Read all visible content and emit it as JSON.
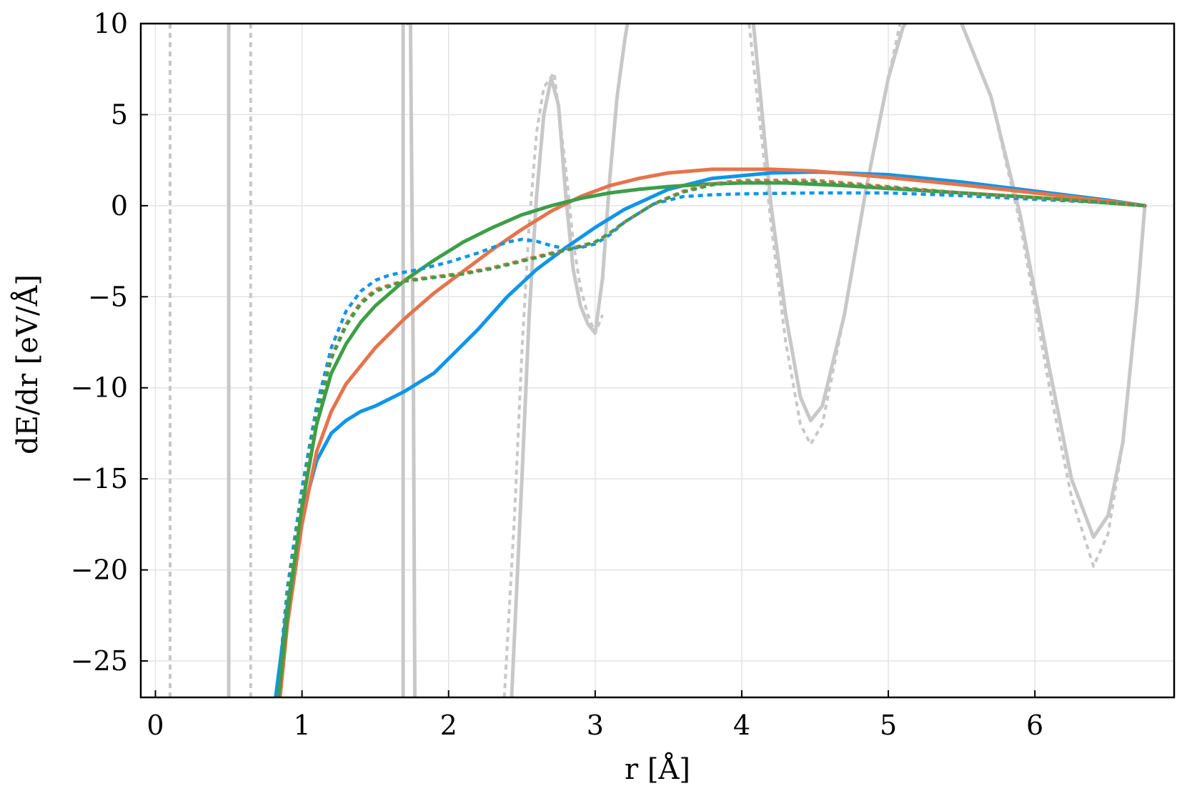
{
  "chart_data": {
    "type": "line",
    "xlabel": "r [Å]",
    "ylabel": "dE/dr [eV/Å]",
    "xlim": [
      -0.1,
      6.95
    ],
    "ylim": [
      -27,
      10
    ],
    "x_ticks": [
      0,
      1,
      2,
      3,
      4,
      5,
      6
    ],
    "y_ticks": [
      10,
      5,
      0,
      -5,
      -10,
      -15,
      -20,
      -25
    ],
    "x_tick_labels": [
      "0",
      "1",
      "2",
      "3",
      "4",
      "5",
      "6"
    ],
    "y_tick_labels": [
      "10",
      "5",
      "0",
      "−5",
      "−10",
      "−15",
      "−20",
      "−25"
    ],
    "grid": true,
    "legend": "none",
    "series": [
      {
        "color": "#c8c8c8",
        "dash": "solid",
        "width": 5,
        "x": [
          0.5,
          0.5
        ],
        "y": [
          -27,
          10
        ]
      },
      {
        "color": "#c8c8c8",
        "dash": "dotted",
        "width": 4,
        "x": [
          0.1,
          0.1
        ],
        "y": [
          -27,
          10
        ]
      },
      {
        "color": "#c8c8c8",
        "dash": "dotted",
        "width": 4,
        "x": [
          0.65,
          0.65
        ],
        "y": [
          -27,
          10
        ]
      },
      {
        "color": "#c8c8c8",
        "dash": "solid",
        "width": 5,
        "x": [
          1.69,
          1.69
        ],
        "y": [
          -27,
          10
        ]
      },
      {
        "color": "#c8c8c8",
        "dash": "solid",
        "width": 5,
        "x": [
          1.72,
          1.73,
          1.74,
          1.76,
          1.77
        ],
        "y": [
          10,
          11,
          10,
          -10,
          -27
        ]
      },
      {
        "color": "#c8c8c8",
        "dash": "solid",
        "width": 5,
        "x": [
          2.43,
          2.5,
          2.55,
          2.6,
          2.65,
          2.7,
          2.75,
          2.8,
          2.85,
          2.9,
          2.95,
          3.0,
          3.05,
          3.1,
          3.15,
          3.2,
          3.22
        ],
        "y": [
          -27,
          -15,
          -6,
          0.5,
          5,
          7,
          5.5,
          0.5,
          -3.5,
          -5.5,
          -6.5,
          -7,
          -4,
          1.5,
          6,
          9,
          10
        ]
      },
      {
        "color": "#c8c8c8",
        "dash": "dotted",
        "width": 4,
        "x": [
          2.38,
          2.45,
          2.5,
          2.55,
          2.6,
          2.65,
          2.72,
          2.8,
          2.85,
          2.9,
          2.95,
          3.0,
          3.05
        ],
        "y": [
          -27,
          -17,
          -8,
          -1,
          4,
          6.5,
          7.3,
          2,
          -2,
          -4.5,
          -6,
          -7,
          -6
        ]
      },
      {
        "color": "#c8c8c8",
        "dash": "solid",
        "width": 5,
        "x": [
          4.08,
          4.2,
          4.3,
          4.4,
          4.47,
          4.55,
          4.7,
          4.85,
          5.0,
          5.1,
          5.2,
          5.3,
          5.5,
          5.7,
          5.9,
          6.1,
          6.25,
          6.4,
          6.5,
          6.6,
          6.7,
          6.75
        ],
        "y": [
          10,
          0,
          -6,
          -10.5,
          -11.8,
          -11,
          -6,
          1,
          7,
          9.8,
          11,
          11,
          10,
          6,
          -0.5,
          -9,
          -15,
          -18.2,
          -17,
          -13,
          -5,
          0
        ]
      },
      {
        "color": "#c8c8c8",
        "dash": "dotted",
        "width": 4,
        "x": [
          4.05,
          4.2,
          4.3,
          4.4,
          4.47,
          4.55,
          4.7,
          4.85,
          5.0,
          5.08,
          5.2,
          5.5,
          5.7,
          5.9,
          6.1,
          6.25,
          6.4,
          6.5,
          6.6,
          6.7,
          6.75
        ],
        "y": [
          10,
          -1,
          -7.5,
          -12,
          -13.1,
          -12,
          -6,
          1,
          7,
          10,
          11,
          10,
          6,
          -1,
          -10,
          -16,
          -19.8,
          -18,
          -13,
          -5,
          0
        ]
      },
      {
        "color": "#0f95ea",
        "dash": "solid",
        "width": 5,
        "x": [
          0.82,
          0.9,
          1.0,
          1.1,
          1.2,
          1.3,
          1.4,
          1.5,
          1.7,
          1.9,
          2.0,
          2.2,
          2.4,
          2.6,
          2.8,
          3.0,
          3.2,
          3.5,
          3.8,
          4.2,
          4.5,
          5.0,
          5.5,
          6.0,
          6.5,
          6.75
        ],
        "y": [
          -27,
          -22,
          -17,
          -14,
          -12.5,
          -11.8,
          -11.3,
          -11,
          -10.2,
          -9.2,
          -8.4,
          -6.8,
          -5,
          -3.5,
          -2.3,
          -1.2,
          -0.2,
          0.9,
          1.5,
          1.8,
          1.85,
          1.7,
          1.3,
          0.8,
          0.3,
          0
        ]
      },
      {
        "color": "#e5744b",
        "dash": "solid",
        "width": 5,
        "x": [
          0.85,
          0.9,
          1.0,
          1.1,
          1.2,
          1.3,
          1.5,
          1.7,
          1.9,
          2.1,
          2.3,
          2.5,
          2.7,
          2.9,
          3.1,
          3.3,
          3.5,
          3.8,
          4.0,
          4.2,
          4.5,
          5.0,
          5.5,
          6.0,
          6.5,
          6.75
        ],
        "y": [
          -27,
          -23,
          -17.5,
          -13.5,
          -11.3,
          -9.8,
          -7.8,
          -6.2,
          -4.8,
          -3.6,
          -2.4,
          -1.3,
          -0.3,
          0.5,
          1.1,
          1.5,
          1.8,
          2.0,
          2.0,
          2.0,
          1.9,
          1.55,
          1.15,
          0.7,
          0.25,
          0
        ]
      },
      {
        "color": "#3e9e48",
        "dash": "solid",
        "width": 5,
        "x": [
          0.84,
          0.9,
          1.0,
          1.1,
          1.2,
          1.3,
          1.4,
          1.5,
          1.7,
          1.9,
          2.1,
          2.3,
          2.5,
          2.7,
          2.9,
          3.1,
          3.3,
          3.5,
          3.8,
          4.0,
          4.3,
          4.7,
          5.0,
          5.5,
          6.0,
          6.5,
          6.75
        ],
        "y": [
          -27,
          -22.5,
          -16.5,
          -12,
          -9.2,
          -7.6,
          -6.4,
          -5.5,
          -4.1,
          -3.0,
          -2.0,
          -1.2,
          -0.5,
          0.0,
          0.4,
          0.7,
          0.9,
          1.05,
          1.2,
          1.25,
          1.25,
          1.1,
          0.95,
          0.7,
          0.45,
          0.15,
          0
        ]
      },
      {
        "color": "#0f95ea",
        "dash": "dotted",
        "width": 4.5,
        "x": [
          0.83,
          0.9,
          1.0,
          1.1,
          1.2,
          1.3,
          1.4,
          1.5,
          1.6,
          1.8,
          2.0,
          2.2,
          2.4,
          2.5,
          2.6,
          2.7,
          2.8,
          2.9,
          3.0,
          3.1,
          3.2,
          3.4,
          3.6,
          3.8,
          4.0,
          4.5,
          5.0,
          5.5,
          6.0,
          6.5,
          6.75
        ],
        "y": [
          -27,
          -21,
          -15.5,
          -11,
          -7.8,
          -5.8,
          -4.7,
          -4.1,
          -3.8,
          -3.5,
          -3.1,
          -2.6,
          -2.0,
          -1.85,
          -1.95,
          -2.2,
          -2.35,
          -2.3,
          -2.1,
          -1.6,
          -0.9,
          0.1,
          0.5,
          0.6,
          0.65,
          0.7,
          0.7,
          0.55,
          0.35,
          0.15,
          0
        ]
      },
      {
        "color": "#e5744b",
        "dash": "dotted",
        "width": 4.5,
        "x": [
          0.84,
          0.9,
          1.0,
          1.1,
          1.2,
          1.3,
          1.4,
          1.5,
          1.7,
          1.9,
          2.1,
          2.3,
          2.5,
          2.7,
          2.9,
          3.0,
          3.1,
          3.2,
          3.4,
          3.6,
          3.8,
          4.0,
          4.5,
          5.0,
          5.5,
          6.0,
          6.5,
          6.75
        ],
        "y": [
          -27,
          -21.5,
          -16,
          -11.5,
          -8.3,
          -6.5,
          -5.3,
          -4.6,
          -4.1,
          -3.9,
          -3.7,
          -3.4,
          -3.0,
          -2.6,
          -2.2,
          -2.0,
          -1.5,
          -0.9,
          0.1,
          0.8,
          1.2,
          1.4,
          1.4,
          1.05,
          0.7,
          0.45,
          0.15,
          0
        ]
      },
      {
        "color": "#3e9e48",
        "dash": "dotted",
        "width": 4.5,
        "x": [
          0.84,
          0.9,
          1.0,
          1.1,
          1.2,
          1.3,
          1.4,
          1.5,
          1.7,
          1.9,
          2.1,
          2.3,
          2.5,
          2.7,
          2.9,
          3.0,
          3.1,
          3.2,
          3.4,
          3.6,
          3.8,
          4.0,
          4.5,
          5.0,
          5.5,
          6.0,
          6.5,
          6.75
        ],
        "y": [
          -27,
          -21.5,
          -16,
          -11.5,
          -8.4,
          -6.6,
          -5.4,
          -4.7,
          -4.15,
          -3.95,
          -3.75,
          -3.45,
          -3.05,
          -2.65,
          -2.25,
          -2.0,
          -1.5,
          -0.9,
          0.1,
          0.75,
          1.15,
          1.3,
          1.3,
          1.0,
          0.7,
          0.45,
          0.15,
          0
        ]
      }
    ]
  }
}
